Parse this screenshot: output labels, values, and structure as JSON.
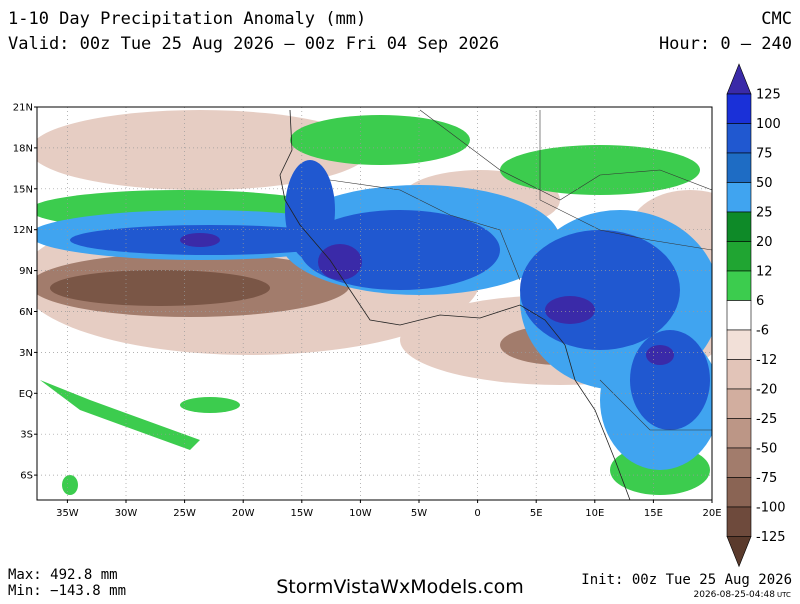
{
  "header": {
    "title": "1-10 Day Precipitation Anomaly (mm)",
    "model": "CMC",
    "valid": "Valid: 00z Tue 25 Aug 2026 – 00z Fri 04 Sep 2026",
    "hour": "Hour: 0 – 240"
  },
  "map": {
    "lat_labels": [
      "21N",
      "18N",
      "15N",
      "12N",
      "9N",
      "6N",
      "3N",
      "EQ",
      "3S",
      "6S"
    ],
    "lon_labels": [
      "35W",
      "30W",
      "25W",
      "20W",
      "15W",
      "10W",
      "5W",
      "0",
      "5E",
      "10E",
      "15E",
      "20E"
    ]
  },
  "colorbar": {
    "labels": [
      "125",
      "100",
      "75",
      "50",
      "25",
      "20",
      "12",
      "6",
      "-6",
      "-12",
      "-20",
      "-25",
      "-50",
      "-75",
      "-100",
      "-125"
    ],
    "colors": [
      "#3a2aa8",
      "#1a30d8",
      "#2058d0",
      "#1e6cc4",
      "#40a4f0",
      "#0e8a28",
      "#20a532",
      "#3ccc4e",
      "#ffffff",
      "#f2e0d8",
      "#e2c4b8",
      "#d2ae9f",
      "#bc9686",
      "#a27c6c",
      "#8a6454",
      "#6e4a3c",
      "#5a3a2c"
    ]
  },
  "footer": {
    "max": "Max: 492.8 mm",
    "min": "Min: −143.8 mm",
    "site": "StormVistaWxModels.com",
    "init": "Init: 00z Tue 25 Aug 2026",
    "stamp": "2026-08-25-04:48",
    "stamp_unit": "UTC"
  }
}
